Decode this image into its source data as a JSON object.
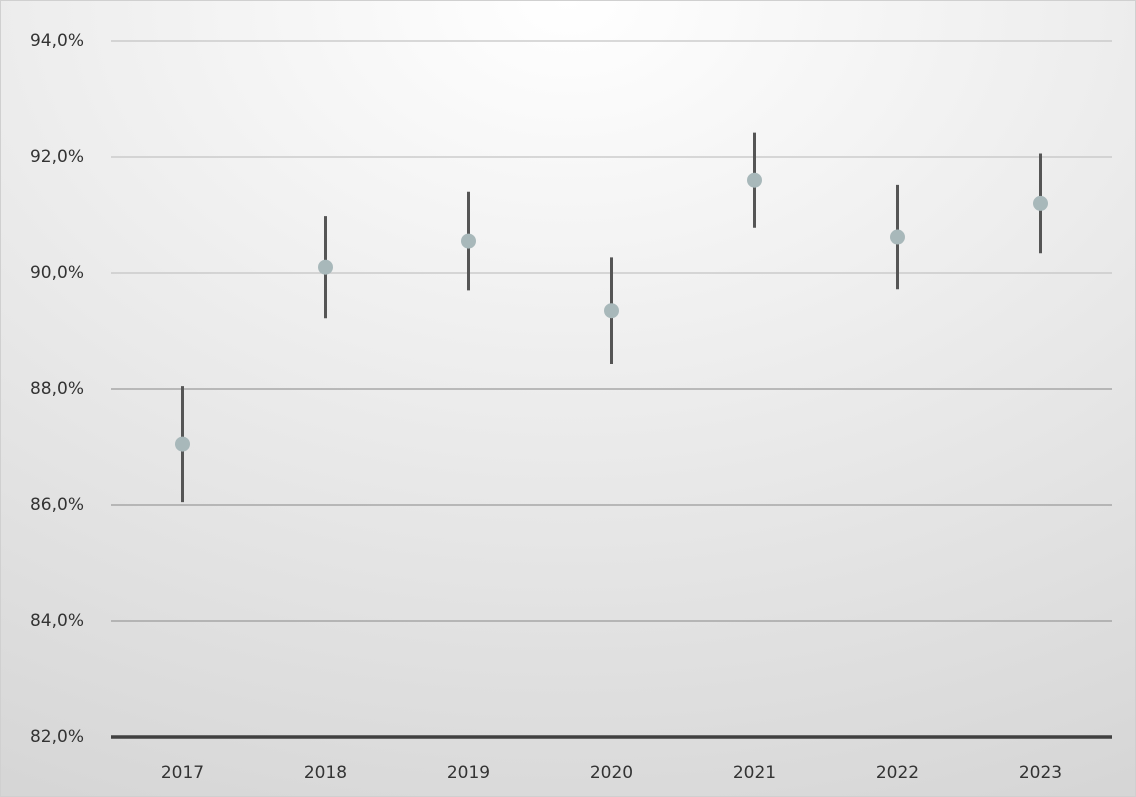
{
  "chart_data": {
    "type": "errorbar",
    "categories": [
      "2017",
      "2018",
      "2019",
      "2020",
      "2021",
      "2022",
      "2023"
    ],
    "values": [
      87.05,
      90.1,
      90.55,
      89.35,
      91.6,
      90.62,
      91.2
    ],
    "errors": [
      1.0,
      0.88,
      0.85,
      0.92,
      0.82,
      0.9,
      0.86
    ],
    "color": "#a8b8ba",
    "error_color": "#555555",
    "ylim": [
      82,
      94
    ],
    "yticks": [
      {
        "value": 82,
        "label": "82,0%"
      },
      {
        "value": 84,
        "label": "84,0%"
      },
      {
        "value": 86,
        "label": "86,0%"
      },
      {
        "value": 88,
        "label": "88,0%"
      },
      {
        "value": 90,
        "label": "90,0%"
      },
      {
        "value": 92,
        "label": "92,0%"
      },
      {
        "value": 94,
        "label": "94,0%"
      }
    ],
    "grid": true
  }
}
